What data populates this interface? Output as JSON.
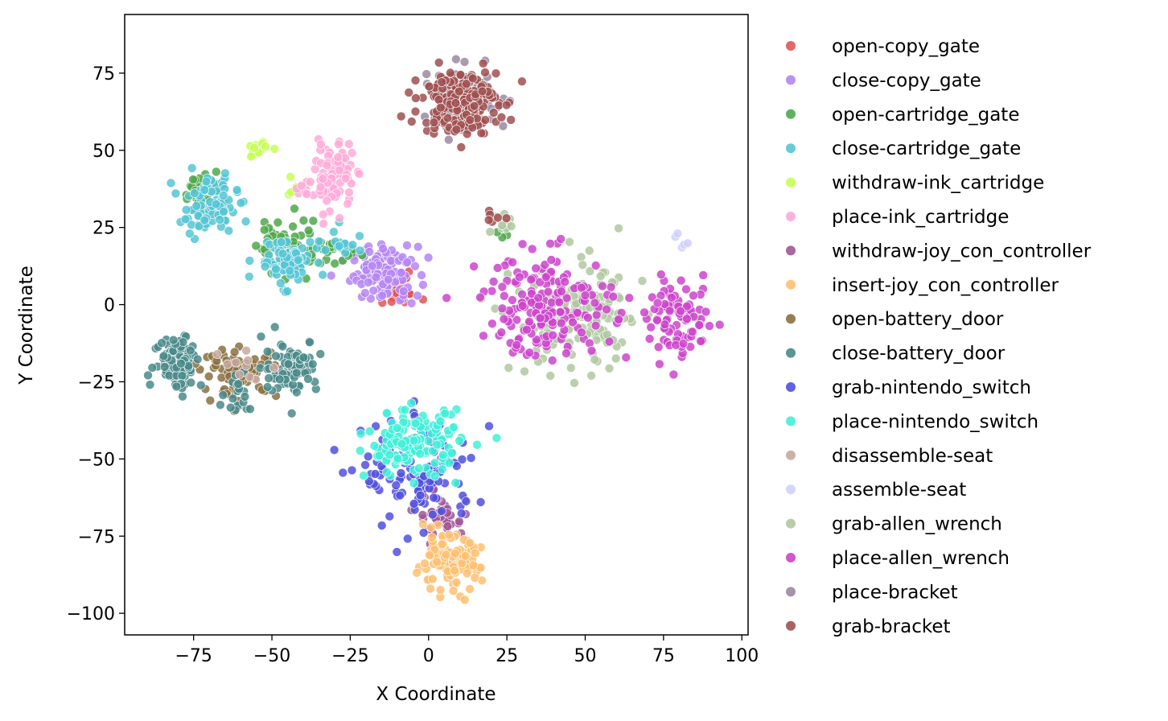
{
  "chart_data": {
    "type": "scatter",
    "xlabel": "X Coordinate",
    "ylabel": "Y Coordinate",
    "xlim": [
      -97,
      102
    ],
    "ylim": [
      -107,
      94
    ],
    "xticks": [
      -75,
      -50,
      -25,
      0,
      25,
      50,
      75,
      100
    ],
    "yticks": [
      75,
      50,
      25,
      0,
      -25,
      -50,
      -75,
      -100
    ],
    "xtick_labels": [
      "−75",
      "−50",
      "−25",
      "0",
      "25",
      "50",
      "75",
      "100"
    ],
    "ytick_labels": [
      "75",
      "50",
      "25",
      "0",
      "−25",
      "−50",
      "−75",
      "−100"
    ],
    "grid": false,
    "legend_position": "outside-right",
    "series": [
      {
        "name": "open-copy_gate",
        "color": "#e05555",
        "clusters": [
          [
            -10,
            4,
            5,
            3,
            25
          ]
        ]
      },
      {
        "name": "close-copy_gate",
        "color": "#b585f5",
        "clusters": [
          [
            -14,
            10,
            7,
            6,
            120
          ]
        ]
      },
      {
        "name": "open-cartridge_gate",
        "color": "#4fa84a",
        "clusters": [
          [
            -72,
            37,
            4,
            4,
            40
          ],
          [
            -46,
            20,
            6,
            8,
            50
          ],
          [
            -30,
            17,
            5,
            3,
            20
          ],
          [
            24,
            24,
            2,
            2,
            6
          ]
        ]
      },
      {
        "name": "close-cartridge_gate",
        "color": "#55c5d5",
        "clusters": [
          [
            -70,
            32,
            6,
            6,
            90
          ],
          [
            -46,
            14,
            6,
            5,
            80
          ],
          [
            -27,
            20,
            5,
            3,
            15
          ]
        ]
      },
      {
        "name": "withdraw-ink_cartridge",
        "color": "#c6ff55",
        "clusters": [
          [
            -55,
            50,
            3,
            2,
            18
          ],
          [
            -42,
            38,
            3,
            2,
            12
          ]
        ]
      },
      {
        "name": "place-ink_cartridge",
        "color": "#ffaad8",
        "clusters": [
          [
            -30,
            42,
            4,
            7,
            80
          ],
          [
            -38,
            37,
            3,
            2,
            10
          ]
        ]
      },
      {
        "name": "withdraw-joy_con_controller",
        "color": "#a05595",
        "clusters": [
          [
            5,
            -68,
            6,
            5,
            40
          ]
        ]
      },
      {
        "name": "insert-joy_con_controller",
        "color": "#ffc070",
        "clusters": [
          [
            6,
            -84,
            7,
            6,
            110
          ]
        ]
      },
      {
        "name": "open-battery_door",
        "color": "#8a7040",
        "clusters": [
          [
            -60,
            -22,
            8,
            5,
            80
          ]
        ]
      },
      {
        "name": "close-battery_door",
        "color": "#4a8a8a",
        "clusters": [
          [
            -80,
            -18,
            5,
            6,
            90
          ],
          [
            -44,
            -20,
            6,
            6,
            80
          ],
          [
            -60,
            -30,
            4,
            4,
            20
          ]
        ]
      },
      {
        "name": "grab-nintendo_switch",
        "color": "#5050e0",
        "clusters": [
          [
            -3,
            -55,
            12,
            12,
            120
          ]
        ]
      },
      {
        "name": "place-nintendo_switch",
        "color": "#40f0d8",
        "clusters": [
          [
            -5,
            -45,
            10,
            7,
            140
          ]
        ]
      },
      {
        "name": "disassemble-seat",
        "color": "#c8a8a0",
        "clusters": [
          [
            -58,
            -18,
            5,
            4,
            10
          ]
        ]
      },
      {
        "name": "assemble-seat",
        "color": "#d0d0ff",
        "clusters": [
          [
            80,
            21,
            2,
            2,
            5
          ]
        ]
      },
      {
        "name": "grab-allen_wrench",
        "color": "#b0c8a0",
        "clusters": [
          [
            48,
            -5,
            14,
            12,
            160
          ],
          [
            22,
            26,
            3,
            3,
            10
          ]
        ]
      },
      {
        "name": "place-allen_wrench",
        "color": "#cc44cc",
        "clusters": [
          [
            38,
            0,
            14,
            11,
            180
          ],
          [
            80,
            -5,
            7,
            8,
            90
          ]
        ]
      },
      {
        "name": "place-bracket",
        "color": "#9a8aa0",
        "clusters": [
          [
            12,
            66,
            9,
            7,
            80
          ]
        ]
      },
      {
        "name": "grab-bracket",
        "color": "#a05050",
        "clusters": [
          [
            10,
            66,
            8,
            7,
            220
          ],
          [
            21,
            28,
            2,
            2,
            6
          ]
        ]
      }
    ]
  }
}
